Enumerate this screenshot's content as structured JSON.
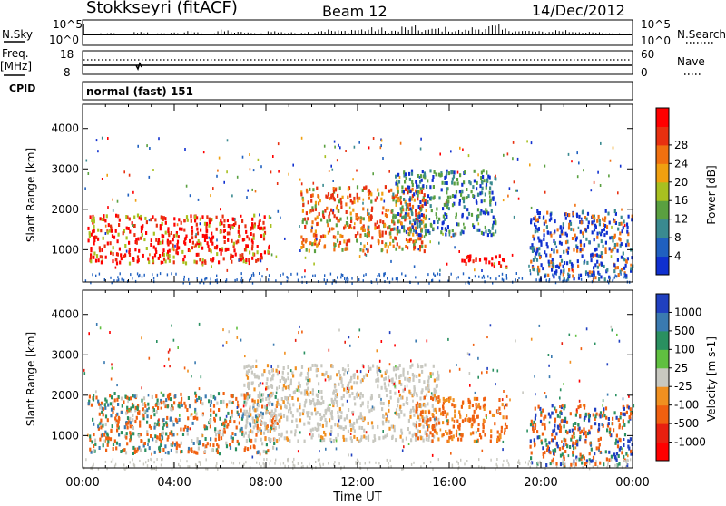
{
  "header": {
    "station": "Stokkseyri (fitACF)",
    "beam": "Beam 12",
    "date": "14/Dec/2012"
  },
  "panels": {
    "nsky": {
      "label": "N.Sky",
      "left_ticks": [
        "10^5",
        "10^0"
      ],
      "right_ticks": [
        "10^5",
        "10^0"
      ],
      "right_label": "N.Search",
      "bar_levels": [
        0.1,
        0.05,
        0.18,
        0.08,
        0.15,
        0.22,
        0.12,
        0.3,
        0.18,
        0.1,
        0.25,
        0.14,
        0.2,
        0.35,
        0.28,
        0.4,
        0.45,
        0.3,
        0.55,
        0.38,
        0.48,
        0.32,
        0.5,
        0.62,
        0.4,
        0.28,
        0.22,
        0.34,
        0.26,
        0.16,
        0.12,
        0.08
      ]
    },
    "freq": {
      "label_line1": "Freq.",
      "label_line2": "[MHz]",
      "left_ticks": [
        "18",
        "8"
      ],
      "right_ticks": [
        "60",
        "0"
      ],
      "right_label": "Nave"
    },
    "cpid": {
      "label": "CPID",
      "text": "normal (fast) 151"
    }
  },
  "chart_data": [
    {
      "type": "heatmap",
      "title": "",
      "ylabel": "Slant Range [km]",
      "yticks": [
        "1000",
        "2000",
        "3000",
        "4000"
      ],
      "ylim": [
        200,
        4600
      ],
      "x_ticks": [
        "00:00",
        "04:00",
        "08:00",
        "12:00",
        "16:00",
        "20:00",
        "00:00"
      ],
      "colorbar": {
        "label": "Power [dB]",
        "ticks": [
          "4",
          "8",
          "12",
          "16",
          "20",
          "24",
          "28"
        ],
        "colors": [
          "#1030d0",
          "#2060c0",
          "#3a8a90",
          "#5aa040",
          "#a8c020",
          "#f0a010",
          "#f07010",
          "#e83010",
          "#ff0000"
        ]
      },
      "regions": [
        {
          "t0": 0.2,
          "t1": 8.2,
          "r0": 700,
          "r1": 1900,
          "dominant": "red-orange"
        },
        {
          "t0": 9.5,
          "t1": 15.0,
          "r0": 1000,
          "r1": 2600,
          "dominant": "orange-red"
        },
        {
          "t0": 13.5,
          "t1": 18.0,
          "r0": 1400,
          "r1": 3000,
          "dominant": "green-blue"
        },
        {
          "t0": 16.5,
          "t1": 18.5,
          "r0": 600,
          "r1": 900,
          "dominant": "red"
        },
        {
          "t0": 19.5,
          "t1": 24.0,
          "r0": 300,
          "r1": 2000,
          "dominant": "blue-green"
        }
      ]
    },
    {
      "type": "heatmap",
      "title": "",
      "ylabel": "Slant Range [km]",
      "yticks": [
        "1000",
        "2000",
        "3000",
        "4000"
      ],
      "ylim": [
        200,
        4600
      ],
      "x_ticks": [
        "00:00",
        "04:00",
        "08:00",
        "12:00",
        "16:00",
        "20:00",
        "00:00"
      ],
      "xlabel": "Time UT",
      "colorbar": {
        "label": "Velocity [m s-1]",
        "ticks": [
          "1000",
          "500",
          "100",
          "25",
          "-25",
          "-100",
          "-500",
          "-1000"
        ],
        "colors": [
          "#2040c0",
          "#3a7ab0",
          "#2a9060",
          "#60c040",
          "#c8c8c0",
          "#f09020",
          "#f06010",
          "#e82010",
          "#ff0000"
        ]
      },
      "regions": [
        {
          "t0": 0.2,
          "t1": 8.5,
          "r0": 600,
          "r1": 2100,
          "dominant": "orange-green"
        },
        {
          "t0": 7.0,
          "t1": 15.5,
          "r0": 900,
          "r1": 2800,
          "dominant": "grey"
        },
        {
          "t0": 14.5,
          "t1": 18.5,
          "r0": 900,
          "r1": 2000,
          "dominant": "orange"
        },
        {
          "t0": 19.5,
          "t1": 24.0,
          "r0": 300,
          "r1": 1800,
          "dominant": "orange-blue"
        }
      ]
    }
  ]
}
